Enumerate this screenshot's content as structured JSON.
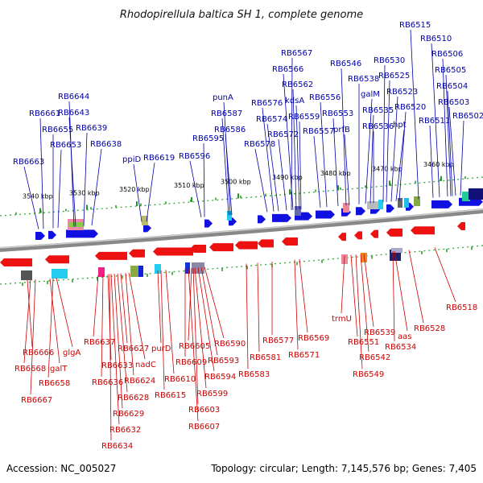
{
  "title": "Rhodopirellula baltica SH 1, complete genome",
  "accession": "Accession: NC_005027",
  "summary": "Topology: circular; Length: 7,145,576 bp; Genes: 7,405",
  "colors": {
    "forward": "#1010e0",
    "reverse": "#ee1111",
    "label_forward": "#0000aa",
    "label_reverse": "#cc0000",
    "tick": "#22aa22"
  },
  "ticks": [
    "3540 kbp",
    "3530 kbp",
    "3520 kbp",
    "3510 kbp",
    "3500 kbp",
    "3490 kbp",
    "3480 kbp",
    "3470 kbp",
    "3460 kbp"
  ],
  "top_labels": [
    "RB6663",
    "RB6661",
    "RB6655",
    "RB6653",
    "RB6644",
    "RB6643",
    "RB6639",
    "RB6638",
    "ppiD",
    "RB6619",
    "RB6596",
    "RB6595",
    "RB6587",
    "punA",
    "RB6586",
    "RB6578",
    "RB6576",
    "RB6574",
    "RB6572",
    "RB6567",
    "RB6566",
    "RB6562",
    "kdsA",
    "RB6559",
    "RB6557",
    "RB6556",
    "RB6553",
    "RB6546",
    "prfB",
    "RB6538",
    "galM",
    "RB6536",
    "RB6535",
    "RB6530",
    "RB6525",
    "RB6523",
    "hpt",
    "RB6520",
    "RB6515",
    "RB6511",
    "RB6510",
    "RB6506",
    "RB6505",
    "RB6504",
    "RB6503",
    "RB6502"
  ],
  "bottom_labels": [
    "RB6666",
    "RB6668",
    "RB6667",
    "galT",
    "RB6658",
    "glgA",
    "RB6637",
    "RB6636",
    "RB6633",
    "RB6634",
    "RB6632",
    "RB6629",
    "RB6628",
    "RB6627",
    "RB6624",
    "nadC",
    "purD",
    "RB6615",
    "RB6610",
    "RB6609",
    "RB6607",
    "RB6605",
    "RB6603",
    "RB6599",
    "RB6594",
    "RB6593",
    "RB6590",
    "RB6583",
    "RB6581",
    "RB6577",
    "RB6571",
    "RB6569",
    "trmU",
    "RB6551",
    "RB6549",
    "RB6542",
    "RB6539",
    "aas",
    "RB6534",
    "RB6528",
    "RB6518"
  ]
}
